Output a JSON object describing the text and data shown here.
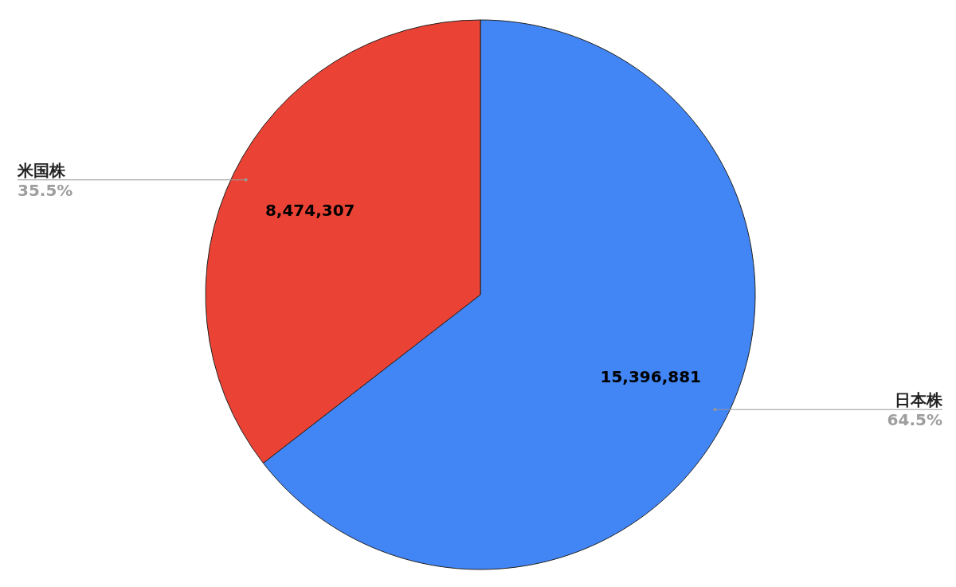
{
  "chart_data": {
    "type": "pie",
    "categories": [
      "日本株",
      "米国株"
    ],
    "values": [
      15396881,
      8474307
    ],
    "colors": [
      "#4285f4",
      "#ea4335"
    ],
    "value_labels": [
      "15,396,881",
      "8,474,307"
    ],
    "annotations": [
      {
        "text": "64.5%",
        "x": "日本株"
      },
      {
        "text": "35.5%",
        "x": "米国株"
      }
    ]
  }
}
